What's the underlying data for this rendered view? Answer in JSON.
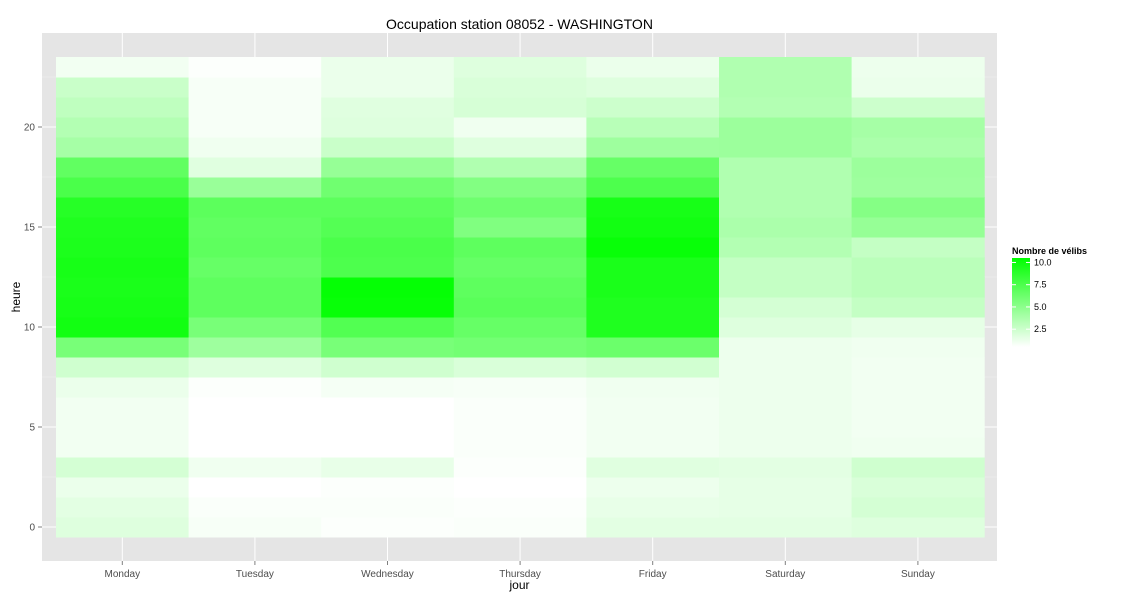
{
  "chart_data": {
    "type": "heatmap",
    "title": "Occupation station 08052 - WASHINGTON",
    "xlabel": "jour",
    "ylabel": "heure",
    "categories": [
      "Monday",
      "Tuesday",
      "Wednesday",
      "Thursday",
      "Friday",
      "Saturday",
      "Sunday"
    ],
    "y": [
      0,
      1,
      2,
      3,
      4,
      5,
      6,
      7,
      8,
      9,
      10,
      11,
      12,
      13,
      14,
      15,
      16,
      17,
      18,
      19,
      20,
      21,
      22,
      23
    ],
    "yticks": [
      0,
      5,
      10,
      15,
      20
    ],
    "ylim": [
      -0.5,
      23.5
    ],
    "grid": true,
    "legend": {
      "title": "Nombre de vélibs",
      "position": "right",
      "breaks": [
        2.5,
        5.0,
        7.5,
        10.0
      ],
      "labels": [
        "2.5",
        "5.0",
        "7.5",
        "10.0"
      ],
      "min": 0.5,
      "max": 10.5,
      "color_low": "#ffffff",
      "color_high": "#00ff00"
    },
    "values": [
      [
        1.8,
        0.8,
        0.6,
        0.7,
        1.6,
        1.6,
        1.8
      ],
      [
        1.6,
        0.7,
        0.7,
        0.6,
        1.4,
        1.5,
        2.2
      ],
      [
        1.3,
        0.5,
        0.6,
        0.5,
        1.2,
        1.5,
        2.0
      ],
      [
        2.2,
        1.1,
        1.4,
        0.6,
        1.7,
        1.6,
        2.4
      ],
      [
        1.0,
        0.3,
        0.5,
        0.7,
        1.0,
        1.2,
        1.1
      ],
      [
        1.0,
        0.3,
        0.5,
        0.7,
        1.0,
        1.2,
        1.0
      ],
      [
        1.0,
        0.3,
        0.5,
        0.7,
        1.0,
        1.2,
        1.0
      ],
      [
        1.3,
        0.6,
        0.9,
        0.8,
        1.1,
        1.2,
        1.0
      ],
      [
        2.4,
        1.8,
        2.4,
        2.0,
        2.3,
        1.2,
        1.0
      ],
      [
        5.8,
        4.3,
        5.8,
        6.0,
        6.3,
        1.2,
        1.1
      ],
      [
        9.8,
        5.8,
        7.3,
        6.5,
        9.3,
        1.8,
        1.5
      ],
      [
        9.6,
        6.8,
        10.2,
        7.0,
        9.3,
        2.2,
        2.8
      ],
      [
        9.5,
        6.8,
        10.3,
        6.8,
        9.5,
        2.8,
        3.2
      ],
      [
        9.6,
        6.5,
        7.5,
        6.5,
        9.5,
        2.8,
        3.2
      ],
      [
        9.4,
        6.8,
        7.6,
        6.8,
        10.2,
        3.5,
        2.8
      ],
      [
        9.3,
        6.7,
        7.2,
        5.5,
        9.8,
        3.8,
        4.6
      ],
      [
        9.0,
        6.9,
        6.9,
        6.2,
        9.6,
        3.6,
        5.3
      ],
      [
        7.6,
        4.5,
        6.1,
        5.4,
        7.5,
        3.6,
        4.3
      ],
      [
        6.7,
        1.7,
        4.6,
        3.6,
        6.5,
        3.6,
        4.4
      ],
      [
        4.0,
        1.1,
        2.6,
        1.8,
        4.3,
        4.4,
        3.8
      ],
      [
        3.5,
        0.8,
        1.8,
        1.1,
        3.3,
        4.4,
        4.0
      ],
      [
        3.0,
        0.8,
        1.7,
        2.1,
        2.5,
        3.5,
        2.5
      ],
      [
        2.6,
        0.8,
        1.3,
        2.0,
        1.8,
        3.6,
        1.3
      ],
      [
        1.0,
        0.6,
        1.3,
        1.8,
        1.3,
        3.6,
        1.2
      ]
    ]
  }
}
